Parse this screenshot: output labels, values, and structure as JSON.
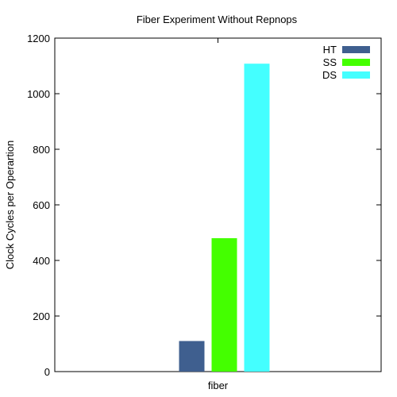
{
  "chart_data": {
    "type": "bar",
    "title": "Fiber Experiment Without Repnops",
    "xlabel": "",
    "ylabel": "Clock Cycles per Operartion",
    "categories": [
      "fiber"
    ],
    "series": [
      {
        "name": "HT",
        "values": [
          110
        ],
        "color": "#3f5f8f"
      },
      {
        "name": "SS",
        "values": [
          480
        ],
        "color": "#44ff00"
      },
      {
        "name": "DS",
        "values": [
          1108
        ],
        "color": "#44ffff"
      }
    ],
    "ylim": [
      0,
      1200
    ],
    "yticks": [
      "0",
      "200",
      "400",
      "600",
      "800",
      "1000",
      "1200"
    ],
    "grid": false,
    "legend_position": "top-right"
  }
}
